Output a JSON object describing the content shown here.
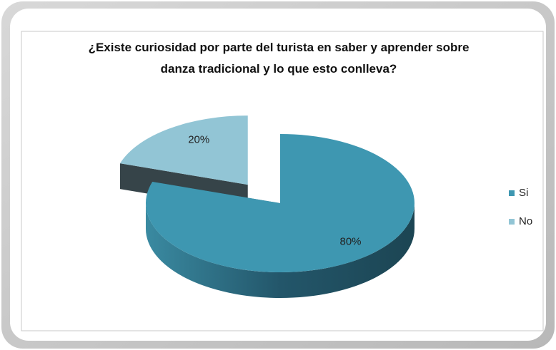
{
  "chart_data": {
    "type": "pie",
    "title": "¿Existe curiosidad  por parte del turista en saber y aprender sobre danza tradicional  y lo que esto conlleva?",
    "categories": [
      "Si",
      "No"
    ],
    "values": [
      80,
      20
    ],
    "value_labels": [
      "80%",
      "20%"
    ],
    "colors": [
      "#3e97b1",
      "#92c5d5"
    ],
    "legend": "right"
  }
}
